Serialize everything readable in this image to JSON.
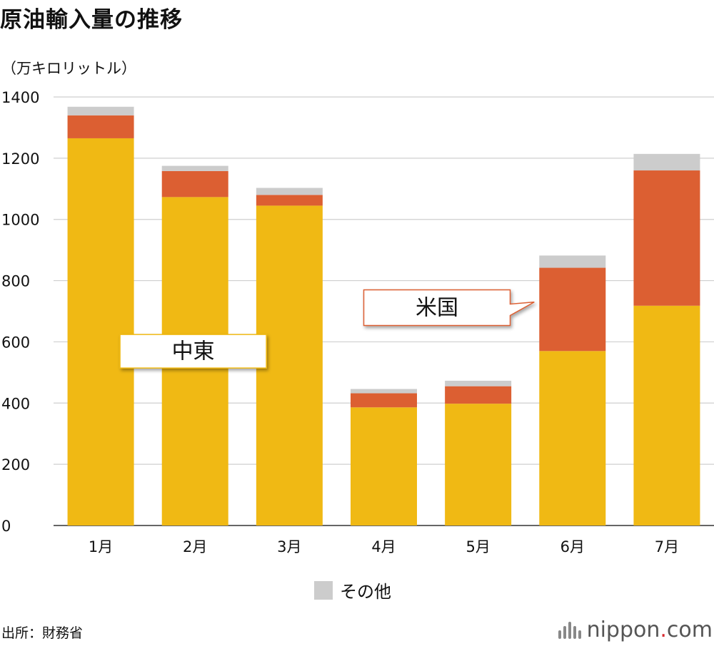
{
  "header": {
    "title": "原油輸入量の推移",
    "unit": "（万キロリットル）"
  },
  "footer": {
    "source": "出所：財務省",
    "logo_main": "nippon",
    "logo_dot": ".",
    "logo_tld": "com"
  },
  "legend": {
    "label": "その他",
    "color": "#cccccc"
  },
  "chart_data": {
    "type": "bar",
    "stacked": true,
    "title": "原油輸入量の推移",
    "ylabel": "（万キロリットル）",
    "categories": [
      "1月",
      "2月",
      "3月",
      "4月",
      "5月",
      "6月",
      "7月"
    ],
    "ylim": [
      0,
      1400
    ],
    "yticks": [
      0,
      200,
      400,
      600,
      800,
      1000,
      1200,
      1400
    ],
    "grid": true,
    "series": [
      {
        "name": "中東",
        "color": "#f0b914",
        "values": [
          1265,
          1073,
          1045,
          386,
          398,
          570,
          718
        ]
      },
      {
        "name": "米国",
        "color": "#dc5f32",
        "values": [
          75,
          85,
          35,
          46,
          57,
          272,
          442
        ]
      },
      {
        "name": "その他",
        "color": "#cccccc",
        "values": [
          28,
          17,
          23,
          14,
          18,
          40,
          54
        ]
      }
    ],
    "annotations": [
      {
        "text": "中東",
        "series": "中東"
      },
      {
        "text": "米国",
        "series": "米国"
      }
    ]
  }
}
